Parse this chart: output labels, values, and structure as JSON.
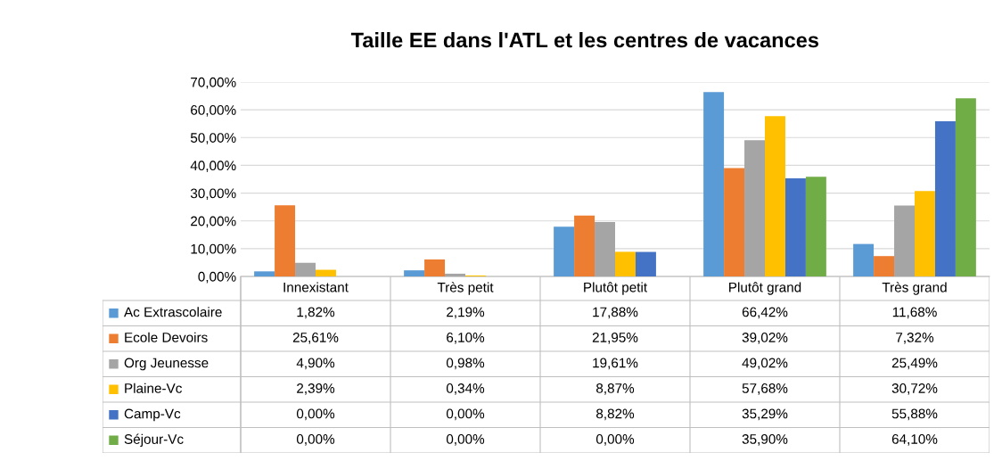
{
  "chart_data": {
    "type": "bar",
    "title": "Taille EE dans l'ATL et les centres de vacances",
    "categories": [
      "Innexistant",
      "Très petit",
      "Plutôt petit",
      "Plutôt grand",
      "Très grand"
    ],
    "series": [
      {
        "name": "Ac Extrascolaire",
        "color": "#5b9bd5",
        "values": [
          1.82,
          2.19,
          17.88,
          66.42,
          11.68
        ],
        "value_labels": [
          "1,82%",
          "2,19%",
          "17,88%",
          "66,42%",
          "11,68%"
        ]
      },
      {
        "name": "Ecole Devoirs",
        "color": "#ed7d31",
        "values": [
          25.61,
          6.1,
          21.95,
          39.02,
          7.32
        ],
        "value_labels": [
          "25,61%",
          "6,10%",
          "21,95%",
          "39,02%",
          "7,32%"
        ]
      },
      {
        "name": "Org Jeunesse",
        "color": "#a5a5a5",
        "values": [
          4.9,
          0.98,
          19.61,
          49.02,
          25.49
        ],
        "value_labels": [
          "4,90%",
          "0,98%",
          "19,61%",
          "49,02%",
          "25,49%"
        ]
      },
      {
        "name": "Plaine-Vc",
        "color": "#ffc000",
        "values": [
          2.39,
          0.34,
          8.87,
          57.68,
          30.72
        ],
        "value_labels": [
          "2,39%",
          "0,34%",
          "8,87%",
          "57,68%",
          "30,72%"
        ]
      },
      {
        "name": "Camp-Vc",
        "color": "#4472c4",
        "values": [
          0.0,
          0.0,
          8.82,
          35.29,
          55.88
        ],
        "value_labels": [
          "0,00%",
          "0,00%",
          "8,82%",
          "35,29%",
          "55,88%"
        ]
      },
      {
        "name": "Séjour-Vc",
        "color": "#70ad47",
        "values": [
          0.0,
          0.0,
          0.0,
          35.9,
          64.1
        ],
        "value_labels": [
          "0,00%",
          "0,00%",
          "0,00%",
          "35,90%",
          "64,10%"
        ]
      }
    ],
    "ylim": [
      0,
      70
    ],
    "yticks": [
      {
        "value": 0,
        "label": "0,00%"
      },
      {
        "value": 10,
        "label": "10,00%"
      },
      {
        "value": 20,
        "label": "20,00%"
      },
      {
        "value": 30,
        "label": "30,00%"
      },
      {
        "value": 40,
        "label": "40,00%"
      },
      {
        "value": 50,
        "label": "50,00%"
      },
      {
        "value": 60,
        "label": "60,00%"
      },
      {
        "value": 70,
        "label": "70,00%"
      }
    ],
    "grid": "y",
    "legend": "bottom left"
  }
}
